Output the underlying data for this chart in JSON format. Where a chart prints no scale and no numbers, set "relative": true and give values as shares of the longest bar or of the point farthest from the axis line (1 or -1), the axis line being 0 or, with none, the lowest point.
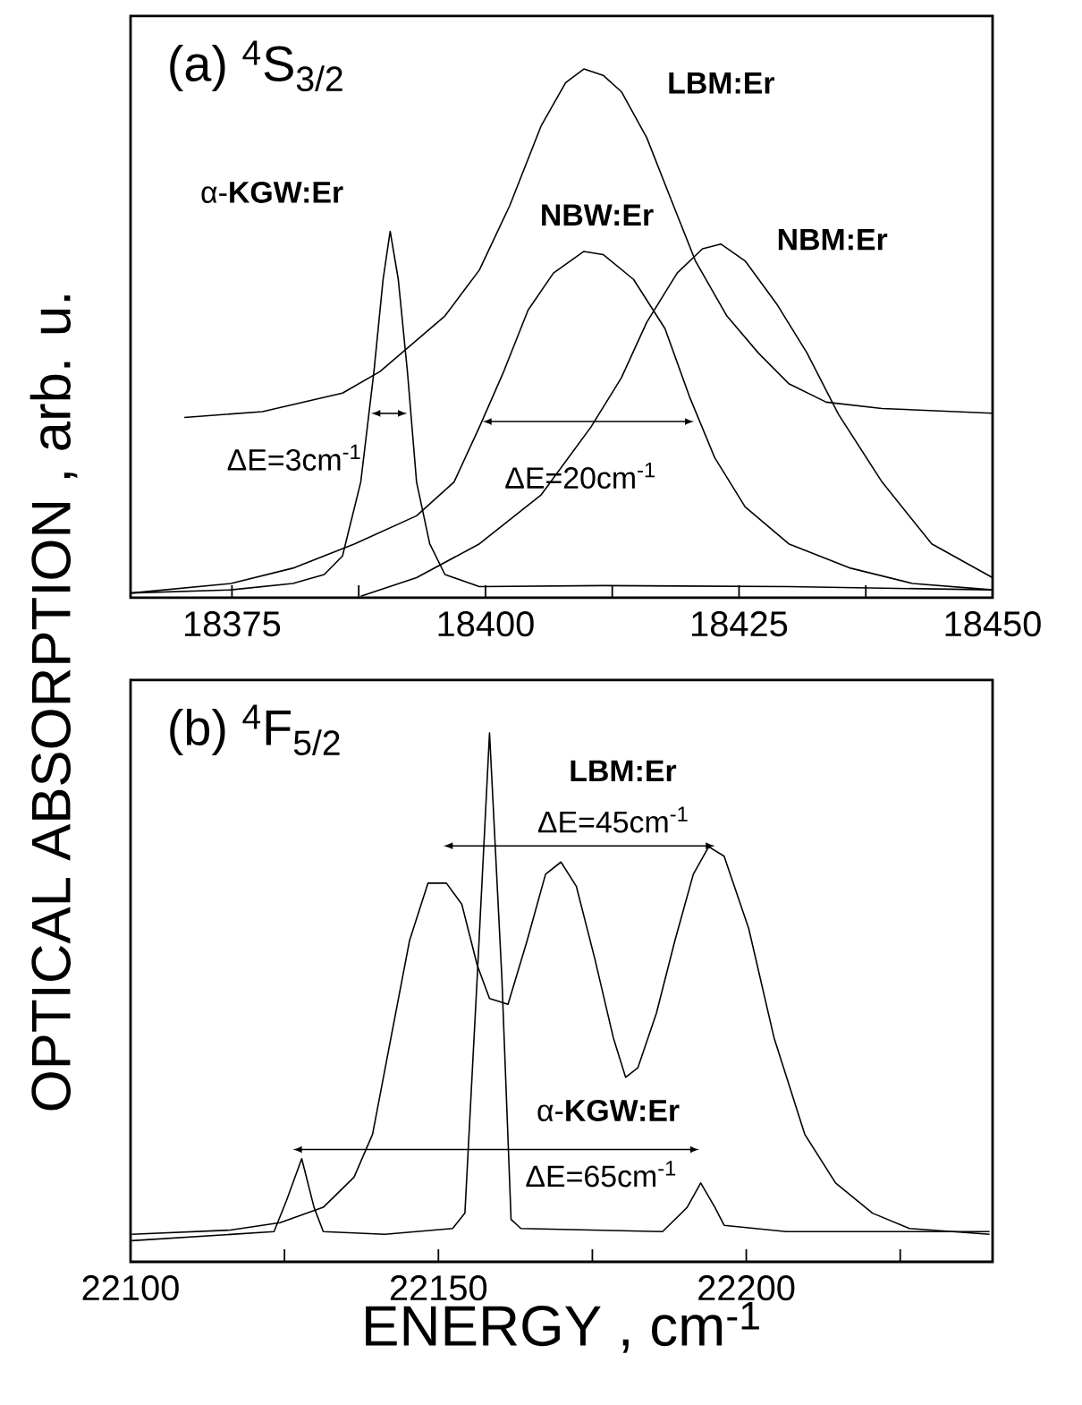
{
  "chart_data": [
    {
      "type": "line",
      "relative": true,
      "title": "(a) $^{4}$S$_{3/2}$",
      "ylabel": "OPTICAL ABSORPTION , arb. u.",
      "xlim": [
        18365,
        18450
      ],
      "tick_labels": "x",
      "xticks": [
        18375,
        {
          "value": 18387.5,
          "label": null
        },
        18400,
        {
          "value": 18412.5,
          "label": null
        },
        18425,
        {
          "value": 18437.5,
          "label": null
        },
        18450
      ],
      "series": [
        {
          "color": "#000000",
          "x": [
            18370.3,
            18378.0,
            18385.9,
            18389.6,
            18396.0,
            18399.4,
            18402.4,
            18405.5,
            18407.9,
            18409.7,
            18411.6,
            18413.4,
            18415.9,
            18418.3,
            18420.7,
            18423.8,
            18426.9,
            18429.9,
            18433.6,
            18439.1,
            18450
          ],
          "values": [
            0.341,
            0.352,
            0.387,
            0.428,
            0.533,
            0.62,
            0.742,
            0.893,
            0.974,
            1.0,
            0.988,
            0.957,
            0.87,
            0.753,
            0.637,
            0.533,
            0.463,
            0.405,
            0.37,
            0.358,
            0.349
          ]
        },
        {
          "color": "#000000",
          "x": [
            18365.1,
            18374.9,
            18381.0,
            18387.1,
            18393.2,
            18396.9,
            18399.4,
            18401.8,
            18404.2,
            18406.7,
            18409.7,
            18411.6,
            18414.6,
            18417.7,
            18420.1,
            18422.6,
            18425.6,
            18429.9,
            18436.0,
            18442.1,
            18450
          ],
          "values": [
            0.009,
            0.027,
            0.056,
            0.102,
            0.155,
            0.219,
            0.323,
            0.428,
            0.544,
            0.614,
            0.655,
            0.649,
            0.602,
            0.509,
            0.381,
            0.265,
            0.172,
            0.102,
            0.056,
            0.027,
            0.015
          ]
        },
        {
          "color": "#000000",
          "x": [
            18387.7,
            18393.2,
            18399.4,
            18405.5,
            18410.4,
            18413.4,
            18415.9,
            18418.9,
            18421.4,
            18423.2,
            18425.6,
            18428.7,
            18431.7,
            18434.8,
            18439.1,
            18444.0,
            18450
          ],
          "values": [
            0.003,
            0.038,
            0.102,
            0.195,
            0.323,
            0.416,
            0.521,
            0.614,
            0.66,
            0.669,
            0.637,
            0.556,
            0.463,
            0.347,
            0.219,
            0.102,
            0.038
          ]
        },
        {
          "color": "#000000",
          "x": [
            18365.1,
            18374.9,
            18381.0,
            18384.1,
            18385.9,
            18387.7,
            18389.0,
            18389.9,
            18390.6,
            18391.4,
            18392.3,
            18393.2,
            18394.5,
            18396.0,
            18399.4,
            18411.6,
            18429.9,
            18450
          ],
          "values": [
            0.009,
            0.015,
            0.027,
            0.044,
            0.079,
            0.219,
            0.428,
            0.602,
            0.693,
            0.602,
            0.428,
            0.219,
            0.102,
            0.044,
            0.021,
            0.023,
            0.021,
            0.015
          ]
        }
      ],
      "annotations": [
        "**LBM:Er**",
        "**NBW:Er**",
        "**NBM:Er**",
        "α-**KGW:Er**",
        "ΔE=3cm$^{-1}$",
        "ΔE=20cm$^{-1}$"
      ]
    },
    {
      "type": "line",
      "relative": true,
      "title": "(b) $^{4}$F$_{5/2}$",
      "xlabel": "ENERGY , cm$^{-1}$",
      "xlim": [
        22100,
        22240
      ],
      "tick_labels": "x",
      "xticks": [
        22100,
        {
          "value": 22125,
          "label": null
        },
        22150,
        {
          "value": 22175,
          "label": null
        },
        22200,
        {
          "value": 22225,
          "label": null
        }
      ],
      "series": [
        {
          "color": "#000000",
          "x": [
            22100.2,
            22116.2,
            22124.3,
            22131.3,
            22136.3,
            22139.3,
            22142.3,
            22145.3,
            22148.3,
            22151.3,
            22153.8,
            22156.3,
            22158.3,
            22161.3,
            22164.4,
            22167.4,
            22169.9,
            22172.4,
            22175.4,
            22178.4,
            22180.4,
            22182.4,
            22185.4,
            22188.4,
            22191.4,
            22193.9,
            22196.4,
            22200.4,
            22204.5,
            22209.5,
            22214.5,
            22220.5,
            22226.5,
            22239.5
          ],
          "values": [
            0.052,
            0.06,
            0.074,
            0.103,
            0.16,
            0.241,
            0.424,
            0.607,
            0.716,
            0.716,
            0.676,
            0.561,
            0.498,
            0.487,
            0.607,
            0.733,
            0.756,
            0.71,
            0.573,
            0.424,
            0.349,
            0.367,
            0.47,
            0.607,
            0.733,
            0.785,
            0.767,
            0.63,
            0.424,
            0.241,
            0.149,
            0.092,
            0.063,
            0.052
          ]
        },
        {
          "color": "#000000",
          "x": [
            22100.2,
            22123.3,
            22125.3,
            22127.8,
            22129.8,
            22131.3,
            22141.3,
            22152.3,
            22154.3,
            22156.3,
            22158.3,
            22160.3,
            22161.8,
            22163.4,
            22186.4,
            22190.4,
            22192.6,
            22194.9,
            22196.4,
            22206.5,
            22239.5
          ],
          "values": [
            0.04,
            0.057,
            0.115,
            0.195,
            0.103,
            0.057,
            0.052,
            0.063,
            0.092,
            0.538,
            1.0,
            0.538,
            0.08,
            0.063,
            0.057,
            0.103,
            0.149,
            0.103,
            0.069,
            0.057,
            0.057
          ]
        }
      ],
      "annotations": [
        "**LBM:Er**",
        "ΔE=45cm$^{-1}$",
        "α-**KGW:Er**",
        "ΔE=65cm$^{-1}$"
      ]
    }
  ]
}
